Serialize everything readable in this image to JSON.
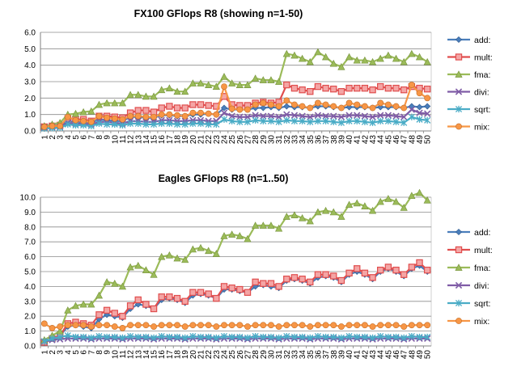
{
  "chart_data": [
    {
      "type": "line",
      "title": "FX100 GFlops R8 (showing n=1-50)",
      "xlabel": "",
      "ylabel": "",
      "ylim": [
        0,
        6
      ],
      "yticks": [
        "0.0",
        "1.0",
        "2.0",
        "3.0",
        "4.0",
        "5.0",
        "6.0"
      ],
      "grid": true,
      "legend_position": "right",
      "x": [
        1,
        2,
        3,
        4,
        5,
        6,
        7,
        8,
        9,
        10,
        11,
        12,
        13,
        14,
        15,
        16,
        17,
        18,
        19,
        20,
        21,
        22,
        23,
        24,
        25,
        26,
        27,
        28,
        29,
        30,
        31,
        32,
        33,
        34,
        35,
        36,
        37,
        38,
        39,
        40,
        41,
        42,
        43,
        44,
        45,
        46,
        47,
        48,
        49,
        50
      ],
      "series": [
        {
          "name": "add:",
          "color": "#4a7ebb",
          "marker": "diamond",
          "values": [
            0.2,
            0.25,
            0.3,
            0.6,
            0.55,
            0.55,
            0.5,
            0.7,
            0.65,
            0.6,
            0.6,
            0.85,
            0.85,
            0.8,
            0.8,
            0.95,
            0.95,
            0.9,
            0.9,
            1.0,
            1.0,
            1.05,
            1.0,
            1.4,
            1.3,
            1.3,
            1.3,
            1.4,
            1.4,
            1.45,
            1.4,
            1.5,
            1.45,
            1.45,
            1.4,
            1.5,
            1.5,
            1.45,
            1.4,
            1.45,
            1.45,
            1.45,
            1.4,
            1.45,
            1.45,
            1.45,
            1.4,
            1.5,
            1.45,
            1.5
          ]
        },
        {
          "name": "mult:",
          "color": "#e04d4d",
          "marker": "square",
          "values": [
            0.25,
            0.3,
            0.35,
            0.75,
            0.7,
            0.7,
            0.6,
            0.9,
            0.9,
            0.85,
            0.8,
            1.1,
            1.25,
            1.25,
            1.15,
            1.4,
            1.5,
            1.4,
            1.4,
            1.6,
            1.6,
            1.55,
            1.5,
            2.1,
            1.6,
            1.55,
            1.55,
            1.7,
            1.75,
            1.7,
            1.75,
            2.8,
            2.6,
            2.5,
            2.4,
            2.7,
            2.6,
            2.55,
            2.4,
            2.6,
            2.6,
            2.6,
            2.5,
            2.7,
            2.6,
            2.6,
            2.5,
            2.7,
            2.6,
            2.55
          ]
        },
        {
          "name": "fma:",
          "color": "#9bbb59",
          "marker": "triangle",
          "values": [
            0.3,
            0.4,
            0.5,
            1.0,
            1.05,
            1.15,
            1.2,
            1.6,
            1.7,
            1.7,
            1.7,
            2.2,
            2.2,
            2.1,
            2.1,
            2.5,
            2.6,
            2.4,
            2.4,
            2.9,
            2.9,
            2.8,
            2.7,
            3.3,
            2.9,
            2.8,
            2.8,
            3.2,
            3.1,
            3.1,
            3.0,
            4.7,
            4.6,
            4.4,
            4.2,
            4.8,
            4.5,
            4.1,
            3.9,
            4.5,
            4.3,
            4.3,
            4.2,
            4.4,
            4.6,
            4.4,
            4.2,
            4.7,
            4.5,
            4.2
          ]
        },
        {
          "name": "divi:",
          "color": "#7f5ca6",
          "marker": "x",
          "values": [
            0.2,
            0.25,
            0.25,
            0.5,
            0.45,
            0.45,
            0.4,
            0.55,
            0.55,
            0.5,
            0.45,
            0.6,
            0.6,
            0.55,
            0.55,
            0.65,
            0.65,
            0.6,
            0.6,
            0.65,
            0.65,
            0.6,
            0.6,
            1.1,
            0.9,
            0.85,
            0.85,
            0.95,
            0.9,
            0.9,
            0.85,
            1.0,
            0.95,
            0.9,
            0.85,
            0.95,
            0.9,
            0.9,
            0.85,
            0.95,
            0.95,
            0.9,
            0.85,
            0.95,
            0.95,
            0.9,
            0.85,
            1.3,
            1.1,
            1.05
          ]
        },
        {
          "name": "sqrt:",
          "color": "#4aacc6",
          "marker": "star",
          "values": [
            0.15,
            0.18,
            0.2,
            0.4,
            0.35,
            0.35,
            0.3,
            0.45,
            0.4,
            0.4,
            0.35,
            0.45,
            0.45,
            0.4,
            0.4,
            0.45,
            0.45,
            0.4,
            0.4,
            0.45,
            0.45,
            0.4,
            0.4,
            0.7,
            0.6,
            0.55,
            0.55,
            0.65,
            0.6,
            0.6,
            0.55,
            0.65,
            0.6,
            0.6,
            0.55,
            0.6,
            0.6,
            0.55,
            0.5,
            0.6,
            0.6,
            0.55,
            0.5,
            0.6,
            0.6,
            0.55,
            0.5,
            0.85,
            0.7,
            0.65
          ]
        },
        {
          "name": "mix:",
          "color": "#f79646",
          "marker": "circle",
          "values": [
            0.25,
            0.3,
            0.3,
            0.85,
            0.65,
            0.6,
            0.55,
            0.9,
            0.8,
            0.75,
            0.7,
            0.9,
            0.9,
            0.85,
            0.85,
            1.0,
            1.0,
            0.95,
            0.9,
            1.1,
            1.1,
            1.05,
            1.0,
            2.7,
            1.35,
            1.3,
            1.3,
            1.6,
            1.7,
            1.6,
            1.5,
            1.85,
            1.6,
            1.5,
            1.4,
            1.7,
            1.6,
            1.5,
            1.4,
            1.7,
            1.6,
            1.5,
            1.4,
            1.7,
            1.6,
            1.5,
            1.4,
            2.8,
            2.3,
            2.0
          ]
        }
      ]
    },
    {
      "type": "line",
      "title": "Eagles GFlops R8  (n=1..50)",
      "xlabel": "",
      "ylabel": "",
      "ylim": [
        0,
        10
      ],
      "yticks": [
        "0.0",
        "1.0",
        "2.0",
        "3.0",
        "4.0",
        "5.0",
        "6.0",
        "7.0",
        "8.0",
        "9.0",
        "10.0"
      ],
      "grid": true,
      "legend_position": "right",
      "x": [
        1,
        2,
        3,
        4,
        5,
        6,
        7,
        8,
        9,
        10,
        11,
        12,
        13,
        14,
        15,
        16,
        17,
        18,
        19,
        20,
        21,
        22,
        23,
        24,
        25,
        26,
        27,
        28,
        29,
        30,
        31,
        32,
        33,
        34,
        35,
        36,
        37,
        38,
        39,
        40,
        41,
        42,
        43,
        44,
        45,
        46,
        47,
        48,
        49,
        50
      ],
      "series": [
        {
          "name": "add:",
          "color": "#4a7ebb",
          "marker": "diamond",
          "values": [
            0.2,
            0.5,
            0.7,
            1.3,
            1.4,
            1.3,
            1.2,
            1.8,
            2.1,
            2.0,
            1.9,
            2.5,
            2.8,
            2.7,
            2.5,
            3.1,
            3.2,
            3.1,
            2.9,
            3.4,
            3.5,
            3.4,
            3.2,
            3.8,
            3.8,
            3.7,
            3.6,
            4.0,
            4.1,
            4.0,
            3.9,
            4.4,
            4.5,
            4.4,
            4.2,
            4.6,
            4.7,
            4.6,
            4.3,
            4.8,
            5.0,
            4.8,
            4.5,
            5.0,
            5.2,
            5.0,
            4.7,
            5.2,
            5.4,
            5.0
          ]
        },
        {
          "name": "mult:",
          "color": "#e04d4d",
          "marker": "square",
          "values": [
            0.25,
            0.5,
            0.7,
            1.5,
            1.6,
            1.5,
            1.4,
            2.1,
            2.4,
            2.2,
            2.0,
            2.7,
            3.1,
            2.8,
            2.5,
            3.3,
            3.3,
            3.2,
            3.0,
            3.6,
            3.6,
            3.5,
            3.2,
            4.0,
            3.9,
            3.8,
            3.6,
            4.3,
            4.2,
            4.2,
            4.0,
            4.5,
            4.6,
            4.5,
            4.3,
            4.8,
            4.8,
            4.7,
            4.4,
            4.9,
            5.2,
            4.9,
            4.6,
            5.1,
            5.3,
            5.1,
            4.8,
            5.3,
            5.6,
            5.1
          ]
        },
        {
          "name": "fma:",
          "color": "#9bbb59",
          "marker": "triangle",
          "values": [
            0.4,
            0.7,
            1.0,
            2.4,
            2.7,
            2.8,
            2.8,
            3.4,
            4.3,
            4.2,
            4.0,
            5.3,
            5.4,
            5.1,
            4.8,
            6.0,
            6.1,
            5.9,
            5.8,
            6.5,
            6.6,
            6.4,
            6.2,
            7.4,
            7.5,
            7.4,
            7.2,
            8.1,
            8.1,
            8.1,
            7.9,
            8.7,
            8.8,
            8.6,
            8.4,
            9.0,
            9.1,
            9.0,
            8.7,
            9.5,
            9.6,
            9.4,
            9.1,
            9.7,
            9.9,
            9.7,
            9.3,
            10.1,
            10.3,
            9.8
          ]
        },
        {
          "name": "divi:",
          "color": "#7f5ca6",
          "marker": "x",
          "values": [
            0.3,
            0.4,
            0.45,
            0.5,
            0.5,
            0.5,
            0.45,
            0.5,
            0.5,
            0.5,
            0.45,
            0.5,
            0.5,
            0.5,
            0.45,
            0.5,
            0.5,
            0.5,
            0.45,
            0.5,
            0.5,
            0.5,
            0.45,
            0.5,
            0.5,
            0.5,
            0.45,
            0.5,
            0.5,
            0.5,
            0.45,
            0.5,
            0.5,
            0.5,
            0.45,
            0.5,
            0.5,
            0.5,
            0.45,
            0.5,
            0.5,
            0.5,
            0.45,
            0.5,
            0.5,
            0.5,
            0.45,
            0.5,
            0.5,
            0.5
          ]
        },
        {
          "name": "sqrt:",
          "color": "#4aacc6",
          "marker": "star",
          "values": [
            0.3,
            0.5,
            0.6,
            0.7,
            0.6,
            0.6,
            0.55,
            0.65,
            0.6,
            0.6,
            0.55,
            0.65,
            0.6,
            0.6,
            0.55,
            0.65,
            0.6,
            0.6,
            0.55,
            0.65,
            0.6,
            0.6,
            0.55,
            0.65,
            0.6,
            0.6,
            0.55,
            0.65,
            0.6,
            0.6,
            0.55,
            0.65,
            0.6,
            0.6,
            0.55,
            0.65,
            0.6,
            0.6,
            0.55,
            0.65,
            0.6,
            0.6,
            0.55,
            0.65,
            0.6,
            0.6,
            0.55,
            0.65,
            0.6,
            0.6
          ]
        },
        {
          "name": "mix:",
          "color": "#f79646",
          "marker": "circle",
          "values": [
            1.5,
            1.2,
            1.3,
            1.4,
            1.4,
            1.4,
            1.3,
            1.4,
            1.4,
            1.3,
            1.2,
            1.4,
            1.4,
            1.4,
            1.3,
            1.4,
            1.4,
            1.4,
            1.3,
            1.4,
            1.4,
            1.4,
            1.3,
            1.4,
            1.4,
            1.4,
            1.3,
            1.4,
            1.4,
            1.4,
            1.3,
            1.4,
            1.4,
            1.4,
            1.3,
            1.4,
            1.4,
            1.4,
            1.3,
            1.4,
            1.4,
            1.4,
            1.3,
            1.4,
            1.4,
            1.4,
            1.3,
            1.4,
            1.4,
            1.4
          ]
        }
      ]
    }
  ]
}
